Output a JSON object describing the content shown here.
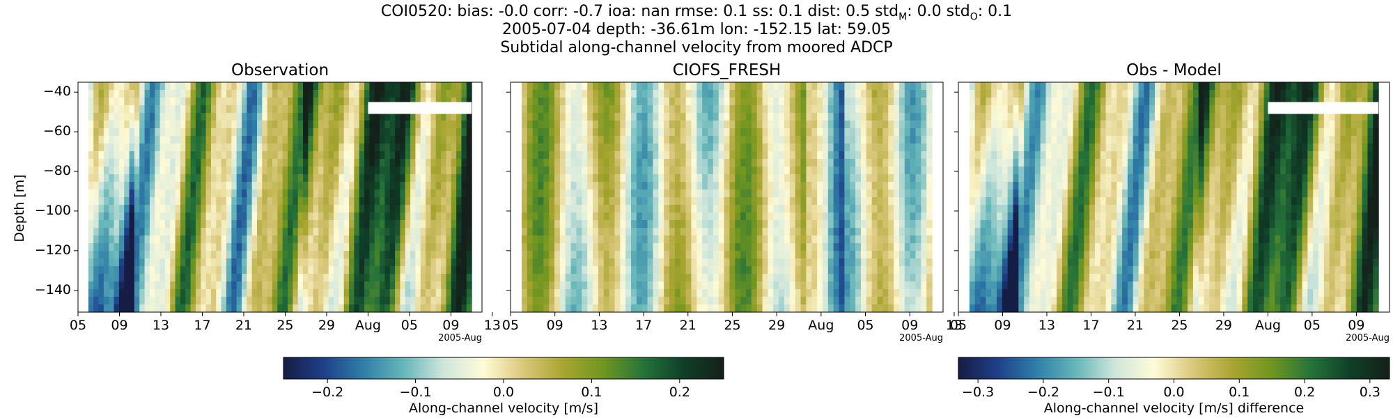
{
  "header": {
    "line1_prefix": "COI0520: bias: -0.0  corr: -0.7  ioa: nan  rmse: 0.1  ss: 0.1  dist: 0.5  std",
    "line1_sub_model": "M",
    "line1_mid": ": 0.0  std",
    "line1_sub_obs": "O",
    "line1_suffix": ": 0.1",
    "line2": "2005-07-04 depth: -36.61m lon: -152.15 lat: 59.05",
    "line3": "Subtidal along-channel velocity from moored ADCP"
  },
  "chart_data": [
    {
      "type": "heatmap",
      "title": "Observation",
      "ylabel": "Depth [m]",
      "xlabel": "",
      "x_tick_labels": [
        "05",
        "09",
        "13",
        "17",
        "21",
        "25",
        "29",
        "Aug",
        "05",
        "09",
        "13"
      ],
      "x_offset_label": "2005-Aug",
      "y_ticks": [
        -40,
        -60,
        -80,
        -100,
        -120,
        -140
      ],
      "y_tick_labels": [
        "−40",
        "−60",
        "−80",
        "−100",
        "−120",
        "−140"
      ],
      "xlim": [
        "2005-07-05",
        "2005-08-13"
      ],
      "ylim": [
        -151,
        -35
      ],
      "data_start": "2005-07-06",
      "data_end": "2005-08-12",
      "missing_band_depth": [
        -51,
        -45
      ],
      "missing_band_start": "2005-08-02",
      "value_range": [
        -0.25,
        0.25
      ],
      "units": "m/s",
      "colormap": "delta",
      "colorbar_label": "Along-channel velocity [m/s]",
      "colorbar_ticks": [
        -0.2,
        -0.1,
        0.0,
        0.1,
        0.2
      ],
      "colorbar_tick_labels": [
        "−0.2",
        "−0.1",
        "0.0",
        "0.1",
        "0.2"
      ]
    },
    {
      "type": "heatmap",
      "title": "CIOFS_FRESH",
      "x_tick_labels": [
        "05",
        "09",
        "13",
        "17",
        "21",
        "25",
        "29",
        "Aug",
        "05",
        "09",
        "13"
      ],
      "x_offset_label": "2005-Aug",
      "xlim": [
        "2005-07-05",
        "2005-08-13"
      ],
      "ylim": [
        -151,
        -35
      ],
      "data_start": "2005-07-06",
      "data_end": "2005-08-12",
      "value_range": [
        -0.25,
        0.25
      ],
      "units": "m/s",
      "colormap": "delta"
    },
    {
      "type": "heatmap",
      "title": "Obs - Model",
      "x_tick_labels": [
        "05",
        "09",
        "13",
        "17",
        "21",
        "25",
        "29",
        "Aug",
        "05",
        "09",
        "13"
      ],
      "x_offset_label": "2005-Aug",
      "xlim": [
        "2005-07-05",
        "2005-08-13"
      ],
      "ylim": [
        -151,
        -35
      ],
      "data_start": "2005-07-06",
      "data_end": "2005-08-12",
      "missing_band_depth": [
        -51,
        -45
      ],
      "missing_band_start": "2005-08-02",
      "value_range": [
        -0.33,
        0.33
      ],
      "units": "m/s",
      "colormap": "delta",
      "colorbar_label": "Along-channel velocity [m/s] difference",
      "colorbar_ticks": [
        -0.3,
        -0.2,
        -0.1,
        0.0,
        0.1,
        0.2,
        0.3
      ],
      "colorbar_tick_labels": [
        "−0.3",
        "−0.2",
        "−0.1",
        "0.0",
        "0.1",
        "0.2",
        "0.3"
      ]
    }
  ],
  "colormap_stops": [
    "#151d44",
    "#1f3f8a",
    "#2f7fa8",
    "#66b6b9",
    "#cfe6dc",
    "#fffbd7",
    "#d9c77a",
    "#a8a530",
    "#6f9620",
    "#25733a",
    "#0f3f28",
    "#15201a"
  ]
}
